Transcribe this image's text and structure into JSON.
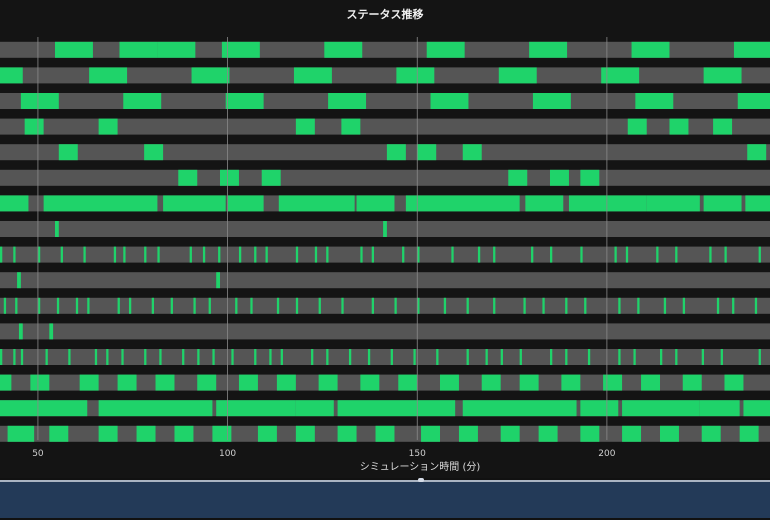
{
  "chart_data": {
    "type": "timeline",
    "title": "ステータス推移",
    "xlabel": "シミュレーション時間 (分)",
    "x_ticks": [
      50,
      100,
      150,
      200
    ],
    "xlim": [
      40,
      243
    ],
    "colors": {
      "active": "#1fd36a",
      "idle": "#555555",
      "background": "#141414",
      "grid": "#8a8a8a"
    },
    "rows": [
      {
        "active": [
          [
            54.5,
            64.5
          ],
          [
            71.5,
            81.5
          ],
          [
            81.5,
            91.5
          ],
          [
            98.5,
            108.5
          ],
          [
            125.5,
            135.5
          ],
          [
            152.5,
            162.5
          ],
          [
            179.5,
            189.5
          ],
          [
            206.5,
            216.5
          ],
          [
            233.5,
            243
          ]
        ]
      },
      {
        "active": [
          [
            40,
            46
          ],
          [
            63.5,
            73.5
          ],
          [
            90.5,
            100.5
          ],
          [
            117.5,
            127.5
          ],
          [
            144.5,
            154.5
          ],
          [
            171.5,
            181.5
          ],
          [
            198.5,
            208.5
          ],
          [
            225.5,
            235.5
          ]
        ]
      },
      {
        "active": [
          [
            45.5,
            55.5
          ],
          [
            72.5,
            82.5
          ],
          [
            99.5,
            109.5
          ],
          [
            126.5,
            136.5
          ],
          [
            153.5,
            163.5
          ],
          [
            180.5,
            190.5
          ],
          [
            207.5,
            217.5
          ],
          [
            234.5,
            243
          ]
        ]
      },
      {
        "active": [
          [
            46.5,
            51.5
          ],
          [
            66,
            71
          ],
          [
            118,
            123
          ],
          [
            130,
            135
          ],
          [
            205.5,
            210.5
          ],
          [
            216.5,
            221.5
          ],
          [
            228,
            233
          ]
        ]
      },
      {
        "active": [
          [
            55.5,
            60.5
          ],
          [
            78,
            83
          ],
          [
            142,
            147
          ],
          [
            150,
            155
          ],
          [
            162,
            167
          ],
          [
            237,
            242
          ]
        ]
      },
      {
        "active": [
          [
            87,
            92
          ],
          [
            98,
            103
          ],
          [
            109,
            114
          ],
          [
            174,
            179
          ],
          [
            185,
            190
          ],
          [
            193,
            198
          ]
        ]
      },
      {
        "active": [
          [
            40,
            47.5
          ],
          [
            51.5,
            81.5
          ],
          [
            83,
            99.5
          ],
          [
            100,
            109.5
          ],
          [
            113.5,
            133.5
          ],
          [
            134,
            144
          ],
          [
            147,
            177
          ],
          [
            178.5,
            188.5
          ],
          [
            190,
            210.5
          ],
          [
            210.5,
            224.5
          ],
          [
            225.5,
            235.5
          ],
          [
            236.5,
            243
          ]
        ]
      },
      {
        "active": [
          [
            54.5,
            55.5
          ],
          [
            141,
            142
          ]
        ]
      },
      {
        "active": [
          [
            40,
            40.6
          ],
          [
            43.5,
            44.1
          ],
          [
            50,
            50.6
          ],
          [
            56,
            56.6
          ],
          [
            62,
            62.6
          ],
          [
            70,
            70.6
          ],
          [
            72.5,
            73.1
          ],
          [
            78,
            78.6
          ],
          [
            81.5,
            82.1
          ],
          [
            90,
            90.6
          ],
          [
            93.5,
            94.1
          ],
          [
            97.5,
            98.1
          ],
          [
            103,
            103.6
          ],
          [
            107,
            107.6
          ],
          [
            110,
            110.6
          ],
          [
            118,
            118.6
          ],
          [
            123,
            123.6
          ],
          [
            126,
            126.6
          ],
          [
            135,
            135.6
          ],
          [
            138,
            138.6
          ],
          [
            146,
            146.6
          ],
          [
            150,
            150.6
          ],
          [
            159,
            159.6
          ],
          [
            166,
            166.6
          ],
          [
            170,
            170.6
          ],
          [
            180,
            180.6
          ],
          [
            185,
            185.6
          ],
          [
            193,
            193.6
          ],
          [
            202,
            202.6
          ],
          [
            205,
            205.6
          ],
          [
            213,
            213.6
          ],
          [
            218,
            218.6
          ],
          [
            227,
            227.6
          ],
          [
            231,
            231.6
          ],
          [
            240,
            240.6
          ]
        ]
      },
      {
        "active": [
          [
            44.5,
            45.5
          ],
          [
            97,
            98
          ]
        ]
      },
      {
        "active": [
          [
            41,
            41.6
          ],
          [
            44,
            44.6
          ],
          [
            50,
            50.6
          ],
          [
            55,
            55.6
          ],
          [
            60,
            60.6
          ],
          [
            63,
            63.6
          ],
          [
            71,
            71.6
          ],
          [
            74,
            74.6
          ],
          [
            80,
            80.6
          ],
          [
            85,
            85.6
          ],
          [
            91,
            91.6
          ],
          [
            95,
            95.6
          ],
          [
            102,
            102.6
          ],
          [
            106,
            106.6
          ],
          [
            113,
            113.6
          ],
          [
            118,
            118.6
          ],
          [
            124,
            124.6
          ],
          [
            130,
            130.6
          ],
          [
            138,
            138.6
          ],
          [
            144,
            144.6
          ],
          [
            150,
            150.6
          ],
          [
            157,
            157.6
          ],
          [
            163,
            163.6
          ],
          [
            170,
            170.6
          ],
          [
            178,
            178.6
          ],
          [
            183,
            183.6
          ],
          [
            189,
            189.6
          ],
          [
            194,
            194.6
          ],
          [
            203,
            203.6
          ],
          [
            208,
            208.6
          ],
          [
            215,
            215.6
          ],
          [
            220,
            220.6
          ],
          [
            229,
            229.6
          ],
          [
            233,
            233.6
          ],
          [
            239,
            239.6
          ]
        ]
      },
      {
        "active": [
          [
            45,
            46
          ],
          [
            53,
            54
          ]
        ]
      },
      {
        "active": [
          [
            40,
            40.6
          ],
          [
            43.5,
            44.1
          ],
          [
            45.5,
            46.1
          ],
          [
            52,
            52.6
          ],
          [
            58,
            58.6
          ],
          [
            65,
            65.6
          ],
          [
            68,
            68.6
          ],
          [
            72,
            72.6
          ],
          [
            78,
            78.6
          ],
          [
            82,
            82.6
          ],
          [
            88,
            88.6
          ],
          [
            92,
            92.6
          ],
          [
            96,
            96.6
          ],
          [
            101,
            101.6
          ],
          [
            107,
            107.6
          ],
          [
            111,
            111.6
          ],
          [
            114,
            114.6
          ],
          [
            122,
            122.6
          ],
          [
            126,
            126.6
          ],
          [
            132,
            132.6
          ],
          [
            137,
            137.6
          ],
          [
            143,
            143.6
          ],
          [
            149,
            149.6
          ],
          [
            155,
            155.6
          ],
          [
            163,
            163.6
          ],
          [
            168,
            168.6
          ],
          [
            172,
            172.6
          ],
          [
            177,
            177.6
          ],
          [
            185,
            185.6
          ],
          [
            189,
            189.6
          ],
          [
            195,
            195.6
          ],
          [
            203,
            203.6
          ],
          [
            207,
            207.6
          ],
          [
            214,
            214.6
          ],
          [
            218,
            218.6
          ],
          [
            225,
            225.6
          ],
          [
            230,
            230.6
          ],
          [
            240,
            240.6
          ]
        ]
      },
      {
        "active": [
          [
            40,
            43
          ],
          [
            48,
            53
          ],
          [
            61,
            66
          ],
          [
            71,
            76
          ],
          [
            81,
            86
          ],
          [
            92,
            97
          ],
          [
            103,
            108
          ],
          [
            113,
            118
          ],
          [
            124,
            129
          ],
          [
            135,
            140
          ],
          [
            145,
            150
          ],
          [
            156,
            161
          ],
          [
            167,
            172
          ],
          [
            177,
            182
          ],
          [
            188,
            193
          ],
          [
            199,
            204
          ],
          [
            209,
            214
          ],
          [
            220,
            225
          ],
          [
            231,
            236
          ]
        ]
      },
      {
        "active": [
          [
            40,
            63
          ],
          [
            66,
            96
          ],
          [
            97,
            118
          ],
          [
            118,
            128
          ],
          [
            129,
            150
          ],
          [
            150,
            160
          ],
          [
            162,
            192
          ],
          [
            193,
            203
          ],
          [
            204,
            224.5
          ],
          [
            224.5,
            235
          ],
          [
            236,
            243
          ]
        ]
      },
      {
        "active": [
          [
            42,
            49
          ],
          [
            53,
            58
          ],
          [
            66,
            71
          ],
          [
            76,
            81
          ],
          [
            86,
            91
          ],
          [
            96,
            101
          ],
          [
            108,
            113
          ],
          [
            118,
            123
          ],
          [
            129,
            134
          ],
          [
            139,
            144
          ],
          [
            151,
            156
          ],
          [
            161,
            166
          ],
          [
            172,
            177
          ],
          [
            182,
            187
          ],
          [
            193,
            198
          ],
          [
            204,
            209
          ],
          [
            214,
            219
          ],
          [
            225,
            230
          ],
          [
            235,
            240
          ]
        ]
      }
    ]
  }
}
